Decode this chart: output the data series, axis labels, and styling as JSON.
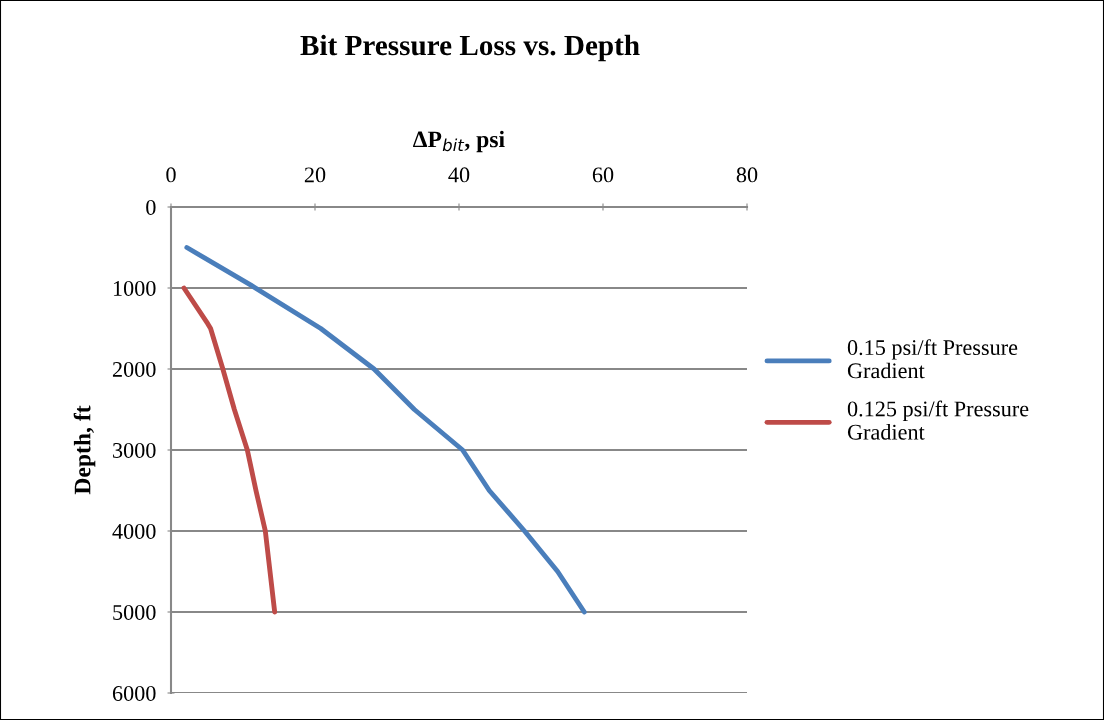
{
  "chart_data": {
    "type": "line",
    "title": "Bit Pressure Loss vs. Depth",
    "xlabel": "ΔP$_{bit}$, psi",
    "ylabel": "Depth, ft",
    "series": [
      {
        "name": "0.15 psi/ft Pressure Gradient",
        "color": "#4a7ebb",
        "x": [
          2.2,
          11.1,
          20.8,
          28.2,
          33.8,
          40.5,
          44.2,
          49.1,
          53.7,
          57.4
        ],
        "values": [
          500,
          965,
          1500,
          2000,
          2500,
          3000,
          3500,
          4000,
          4500,
          5000
        ]
      },
      {
        "name": "0.125 psi/ft Pressure Gradient",
        "color": "#be4b48",
        "x": [
          1.8,
          5.1,
          5.5,
          7.2,
          8.8,
          10.6,
          11.8,
          13.1,
          14.4
        ],
        "values": [
          1000,
          1440,
          1500,
          2000,
          2500,
          3000,
          3500,
          4000,
          5000
        ]
      }
    ],
    "xlim": [
      0,
      80
    ],
    "xticks": [
      0,
      20,
      40,
      60,
      80
    ],
    "ylim": [
      6000,
      0
    ],
    "yticks": [
      0,
      1000,
      2000,
      3000,
      4000,
      5000,
      6000
    ],
    "grid": "y",
    "legend": "right",
    "marker": "none",
    "line_style": "solid"
  }
}
